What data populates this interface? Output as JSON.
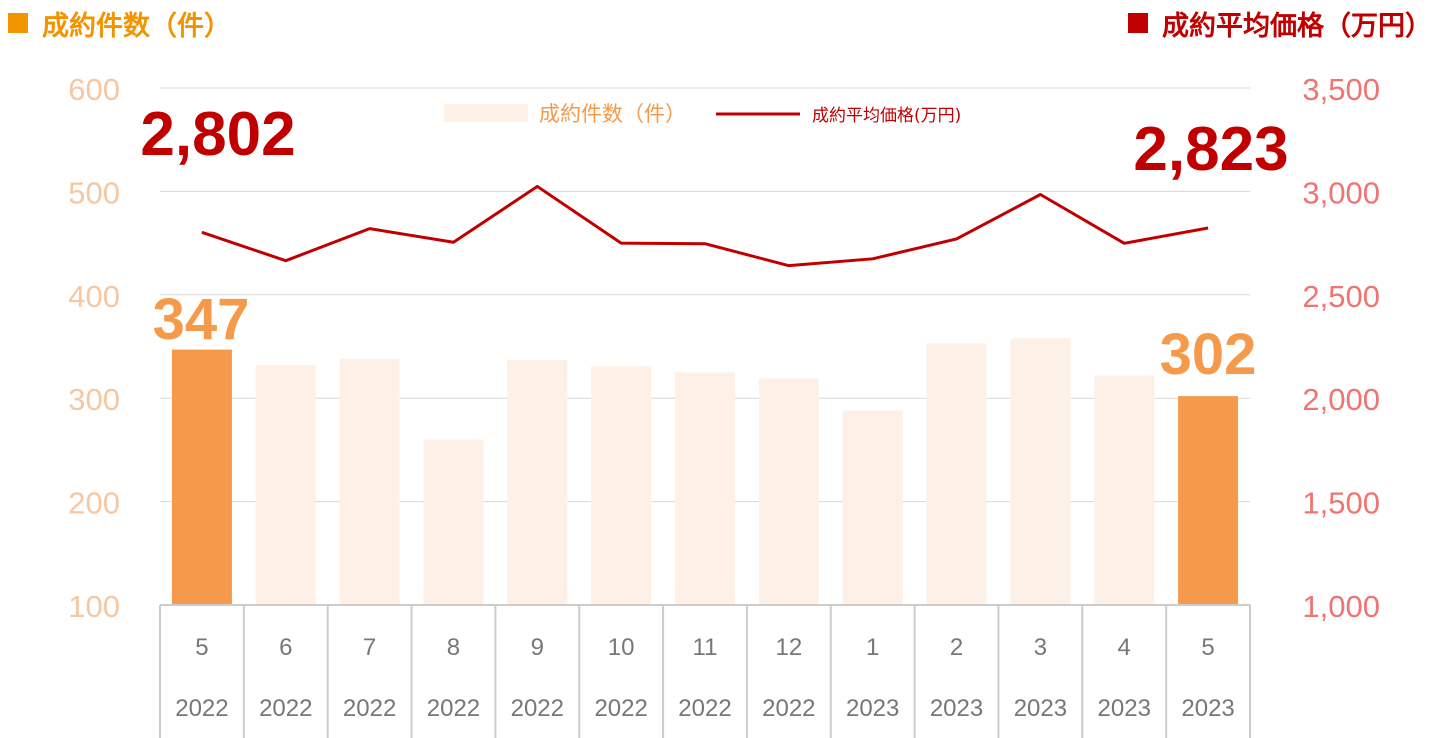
{
  "header": {
    "left_title": "成約件数（件）",
    "right_title": "成約平均価格（万円）",
    "left_color": "#f29400",
    "right_color": "#c00000"
  },
  "chart_data": {
    "type": "bar+line",
    "categories": [
      [
        "5",
        "2022"
      ],
      [
        "6",
        "2022"
      ],
      [
        "7",
        "2022"
      ],
      [
        "8",
        "2022"
      ],
      [
        "9",
        "2022"
      ],
      [
        "10",
        "2022"
      ],
      [
        "11",
        "2022"
      ],
      [
        "12",
        "2022"
      ],
      [
        "1",
        "2023"
      ],
      [
        "2",
        "2023"
      ],
      [
        "3",
        "2023"
      ],
      [
        "4",
        "2023"
      ],
      [
        "5",
        "2023"
      ]
    ],
    "series": [
      {
        "name": "成約件数（件）",
        "type": "bar",
        "axis": "left",
        "values": [
          347,
          332,
          338,
          260,
          337,
          331,
          325,
          319,
          288,
          353,
          358,
          322,
          302
        ],
        "highlight_indices": [
          0,
          12
        ]
      },
      {
        "name": "成約平均価格(万円)",
        "type": "line",
        "axis": "right",
        "values": [
          2802,
          2665,
          2820,
          2754,
          3024,
          2750,
          2747,
          2641,
          2674,
          2770,
          2985,
          2749,
          2823
        ]
      }
    ],
    "y_left": {
      "min": 100,
      "max": 600,
      "ticks": [
        "100",
        "200",
        "300",
        "400",
        "500",
        "600"
      ]
    },
    "y_right": {
      "min": 1000,
      "max": 3500,
      "ticks": [
        "1,000",
        "1,500",
        "2,000",
        "2,500",
        "3,000",
        "3,500"
      ]
    },
    "callouts": {
      "first_count": "347",
      "last_count": "302",
      "first_price": "2,802",
      "last_price": "2,823"
    },
    "legend_position": "top-center",
    "grid": true,
    "colors": {
      "bar_highlight": "#f59a4a",
      "bar_muted": "#fdf0e6",
      "line": "#c00000",
      "left_axis_text": "#f7c7a2",
      "right_axis_text": "#f07470",
      "count_callout": "#f59a4a",
      "price_callout": "#c00000",
      "category_text": "#777777",
      "grid": "#d9d9d9",
      "table_border": "#cccccc"
    }
  }
}
